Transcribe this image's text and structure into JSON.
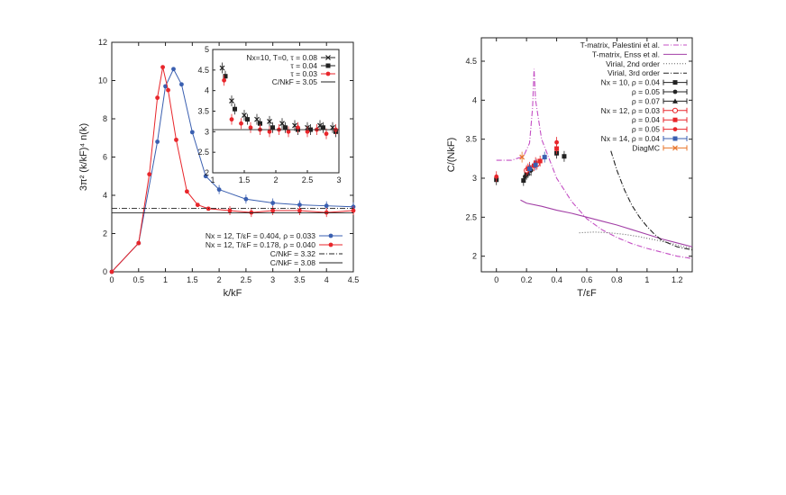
{
  "colors": {
    "blue": "#3a5fb0",
    "red": "#e8262b",
    "black": "#222222",
    "magenta": "#c44fc4",
    "orange": "#e8742a",
    "purple": "#a23fa6",
    "gray": "#666666"
  },
  "chart_data": [
    {
      "type": "line",
      "id": "left",
      "xlabel": "k/kF",
      "ylabel": "3π² (k/kF)⁴ n(k)",
      "xlim": [
        0,
        4.5
      ],
      "ylim": [
        0,
        12
      ],
      "xticks": [
        "0",
        "0.5",
        "1",
        "1.5",
        "2",
        "2.5",
        "3",
        "3.5",
        "4",
        "4.5"
      ],
      "yticks": [
        "0",
        "2",
        "4",
        "6",
        "8",
        "10",
        "12"
      ],
      "legend_position": "bottom-right",
      "series": [
        {
          "name": "Nx = 12, T/εF = 0.404, ρ = 0.033",
          "color": "blue",
          "style": "line-markers",
          "x": [
            0,
            0.5,
            0.85,
            1.0,
            1.15,
            1.3,
            1.5,
            1.75,
            2.0,
            2.5,
            3.0,
            3.5,
            4.0,
            4.5
          ],
          "y": [
            0,
            1.5,
            6.8,
            9.7,
            10.6,
            9.8,
            7.3,
            5.0,
            4.3,
            3.8,
            3.6,
            3.5,
            3.45,
            3.4
          ]
        },
        {
          "name": "Nx = 12, T/εF = 0.178, ρ = 0.040",
          "color": "red",
          "style": "line-markers",
          "x": [
            0,
            0.5,
            0.7,
            0.85,
            0.95,
            1.05,
            1.2,
            1.4,
            1.6,
            1.8,
            2.2,
            2.6,
            3.0,
            3.5,
            4.0,
            4.5
          ],
          "y": [
            0,
            1.5,
            5.1,
            9.1,
            10.7,
            9.5,
            6.9,
            4.2,
            3.5,
            3.3,
            3.2,
            3.1,
            3.2,
            3.2,
            3.1,
            3.2
          ]
        },
        {
          "name": "C/NkF = 3.32",
          "color": "black",
          "style": "dash-dot",
          "y_const": 3.32
        },
        {
          "name": "C/NkF = 3.08",
          "color": "black",
          "style": "solid",
          "y_const": 3.08
        }
      ],
      "inset": {
        "xlim": [
          1,
          3
        ],
        "ylim": [
          2,
          5
        ],
        "xticks": [
          "1",
          "1.5",
          "2",
          "2.5",
          "3"
        ],
        "yticks": [
          "2",
          "2.5",
          "3",
          "3.5",
          "4",
          "4.5",
          "5"
        ],
        "series": [
          {
            "name": "τ = 0.08",
            "prefix": "Nx=10, T=0, ",
            "color": "black",
            "x": [
              1.15,
              1.3,
              1.5,
              1.7,
              1.9,
              2.1,
              2.3,
              2.5,
              2.7,
              2.9
            ],
            "y": [
              4.55,
              3.75,
              3.4,
              3.3,
              3.25,
              3.2,
              3.15,
              3.1,
              3.15,
              3.1
            ]
          },
          {
            "name": "τ = 0.04",
            "prefix": "",
            "color": "black",
            "x": [
              1.2,
              1.35,
              1.55,
              1.75,
              1.95,
              2.15,
              2.35,
              2.55,
              2.75,
              2.95
            ],
            "y": [
              4.35,
              3.55,
              3.3,
              3.2,
              3.1,
              3.1,
              3.05,
              3.05,
              3.1,
              3.0
            ]
          },
          {
            "name": "τ = 0.03",
            "prefix": "",
            "color": "red",
            "x": [
              1.18,
              1.3,
              1.45,
              1.6,
              1.75,
              1.9,
              2.05,
              2.2,
              2.35,
              2.5,
              2.65,
              2.8,
              2.95
            ],
            "y": [
              4.25,
              3.3,
              3.2,
              3.1,
              3.05,
              3.0,
              3.05,
              3.0,
              3.1,
              3.0,
              3.05,
              2.95,
              3.05
            ]
          },
          {
            "name": "C/NkF = 3.05",
            "prefix": "",
            "color": "black",
            "y_const": 3.05
          }
        ]
      }
    },
    {
      "type": "line",
      "id": "right",
      "xlabel": "T/εF",
      "ylabel": "C/(NkF)",
      "xlim": [
        -0.1,
        1.3
      ],
      "ylim": [
        1.8,
        4.8
      ],
      "xticks": [
        "0",
        "0.2",
        "0.4",
        "0.6",
        "0.8",
        "1",
        "1.2"
      ],
      "yticks": [
        "2",
        "2.5",
        "3",
        "3.5",
        "4",
        "4.5"
      ],
      "legend_position": "top-right",
      "series": [
        {
          "name": "T-matrix, Palestini et al.",
          "color": "magenta",
          "style": "dash-dot",
          "x": [
            0.0,
            0.1,
            0.18,
            0.22,
            0.24,
            0.25,
            0.26,
            0.3,
            0.4,
            0.5,
            0.6,
            0.7,
            0.8,
            0.9,
            1.0,
            1.1,
            1.2,
            1.3
          ],
          "y": [
            3.23,
            3.23,
            3.28,
            3.45,
            3.9,
            4.4,
            4.0,
            3.5,
            3.0,
            2.7,
            2.48,
            2.34,
            2.24,
            2.16,
            2.1,
            2.05,
            2.0,
            1.97
          ]
        },
        {
          "name": "T-matrix, Enss et al.",
          "color": "purple",
          "style": "solid",
          "x": [
            0.16,
            0.2,
            0.3,
            0.4,
            0.5,
            0.6,
            0.7,
            0.8,
            0.9,
            1.0,
            1.1,
            1.2,
            1.3
          ],
          "y": [
            2.72,
            2.68,
            2.64,
            2.59,
            2.55,
            2.5,
            2.45,
            2.4,
            2.34,
            2.28,
            2.22,
            2.17,
            2.12
          ]
        },
        {
          "name": "Virial, 2nd order",
          "color": "gray",
          "style": "dotted",
          "x": [
            0.55,
            0.65,
            0.75,
            0.85,
            0.95,
            1.05,
            1.15,
            1.25,
            1.3
          ],
          "y": [
            2.3,
            2.31,
            2.3,
            2.28,
            2.25,
            2.21,
            2.17,
            2.12,
            2.1
          ]
        },
        {
          "name": "Virial, 3rd order",
          "color": "black",
          "style": "dash-dot",
          "x": [
            0.76,
            0.8,
            0.85,
            0.9,
            0.95,
            1.0,
            1.05,
            1.1,
            1.2,
            1.3
          ],
          "y": [
            3.35,
            3.1,
            2.85,
            2.65,
            2.5,
            2.38,
            2.28,
            2.2,
            2.12,
            2.08
          ]
        },
        {
          "name": "Nx = 10, ρ = 0.04",
          "color": "black",
          "marker": "filled-square",
          "x": [
            0.0,
            0.18,
            0.2,
            0.22,
            0.4,
            0.45
          ],
          "y": [
            2.98,
            2.97,
            3.05,
            3.1,
            3.32,
            3.28
          ]
        },
        {
          "name": "ρ = 0.05",
          "color": "black",
          "marker": "filled-circle",
          "x": [
            0.19,
            0.23
          ],
          "y": [
            3.02,
            3.1
          ]
        },
        {
          "name": "ρ = 0.07",
          "color": "black",
          "marker": "triangle",
          "x": [
            0.21
          ],
          "y": [
            3.07
          ]
        },
        {
          "name": "Nx = 12, ρ = 0.03",
          "color": "red",
          "marker": "open-circle",
          "x": [
            0.2,
            0.27
          ],
          "y": [
            3.1,
            3.18
          ]
        },
        {
          "name": "ρ = 0.04",
          "color": "red",
          "marker": "filled-square",
          "x": [
            0.21,
            0.25,
            0.29,
            0.4
          ],
          "y": [
            3.12,
            3.16,
            3.22,
            3.38
          ]
        },
        {
          "name": "ρ = 0.05",
          "color": "red",
          "marker": "filled-circle",
          "x": [
            0.0,
            0.22,
            0.26,
            0.4
          ],
          "y": [
            3.02,
            3.14,
            3.2,
            3.46
          ]
        },
        {
          "name": "Nx = 14, ρ = 0.04",
          "color": "blue",
          "marker": "filled-square",
          "x": [
            0.22,
            0.26,
            0.32
          ],
          "y": [
            3.12,
            3.17,
            3.27
          ]
        },
        {
          "name": "DiagMC",
          "color": "orange",
          "marker": "cross",
          "x": [
            0.17
          ],
          "y": [
            3.27
          ]
        }
      ]
    }
  ]
}
